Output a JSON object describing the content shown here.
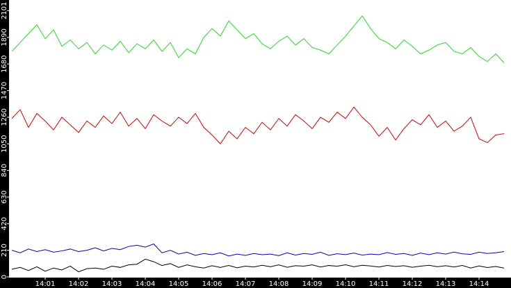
{
  "chart_data": {
    "type": "line",
    "categories": [
      null,
      null,
      null,
      null,
      "14:01",
      null,
      null,
      null,
      "14:02",
      null,
      null,
      null,
      "14:03",
      null,
      null,
      null,
      "14:04",
      null,
      null,
      null,
      "14:05",
      null,
      null,
      null,
      "14:06",
      null,
      null,
      null,
      "14:07",
      null,
      null,
      null,
      "14:08",
      null,
      null,
      null,
      "14:09",
      null,
      null,
      null,
      "14:10",
      null,
      null,
      null,
      "14:11",
      null,
      null,
      null,
      "14:12",
      null,
      null,
      null,
      "14:13",
      null,
      null,
      null,
      "14:14",
      null,
      null,
      null
    ],
    "series": [
      {
        "color": "#22e022",
        "values": [
          1780,
          1850,
          1920,
          1990,
          1880,
          1950,
          1820,
          1870,
          1800,
          1850,
          1760,
          1830,
          1790,
          1860,
          1770,
          1840,
          1800,
          1870,
          1780,
          1850,
          1730,
          1800,
          1760,
          1890,
          1960,
          1900,
          2020,
          1950,
          1880,
          1920,
          1840,
          1800,
          1860,
          1900,
          1830,
          1880,
          1810,
          1790,
          1760,
          1830,
          1900,
          1980,
          2060,
          1960,
          1880,
          1850,
          1800,
          1870,
          1820,
          1760,
          1790,
          1830,
          1850,
          1780,
          1760,
          1810,
          1740,
          1700,
          1760,
          1690
        ]
      },
      {
        "color": "#e00000",
        "values": [
          1250,
          1320,
          1180,
          1290,
          1230,
          1160,
          1260,
          1200,
          1140,
          1230,
          1180,
          1270,
          1210,
          1300,
          1190,
          1250,
          1170,
          1280,
          1230,
          1190,
          1260,
          1210,
          1290,
          1180,
          1120,
          1050,
          1150,
          1090,
          1180,
          1130,
          1220,
          1160,
          1250,
          1190,
          1280,
          1230,
          1170,
          1260,
          1220,
          1300,
          1250,
          1340,
          1260,
          1200,
          1110,
          1180,
          1080,
          1170,
          1240,
          1200,
          1280,
          1180,
          1230,
          1150,
          1190,
          1260,
          1090,
          1060,
          1120,
          1130
        ]
      },
      {
        "color": "#0000c0",
        "values": [
          210,
          190,
          220,
          200,
          215,
          195,
          205,
          220,
          200,
          210,
          230,
          205,
          225,
          215,
          240,
          250,
          235,
          260,
          190,
          210,
          180,
          195,
          170,
          185,
          175,
          190,
          165,
          180,
          170,
          185,
          175,
          180,
          168,
          190,
          172,
          185,
          178,
          195,
          170,
          183,
          176,
          188,
          172,
          180,
          175,
          192,
          178,
          185,
          170,
          188,
          175,
          190,
          180,
          196,
          182,
          178,
          195,
          185,
          190,
          200
        ]
      },
      {
        "color": "#000000",
        "values": [
          60,
          75,
          50,
          80,
          45,
          70,
          55,
          85,
          40,
          65,
          70,
          60,
          85,
          75,
          95,
          100,
          140,
          120,
          90,
          105,
          75,
          95,
          80,
          70,
          88,
          75,
          90,
          72,
          85,
          78,
          92,
          80,
          95,
          76,
          88,
          85,
          95,
          78,
          90,
          84,
          96,
          80,
          92,
          86,
          78,
          90,
          82,
          88,
          76,
          85,
          92,
          80,
          88,
          78,
          90,
          70,
          86,
          74,
          82,
          70
        ]
      }
    ],
    "ylim": [
      0,
      2185
    ],
    "yticks": [
      0,
      210,
      420,
      630,
      840,
      1050,
      1260,
      1470,
      1680,
      1890,
      2101
    ]
  }
}
